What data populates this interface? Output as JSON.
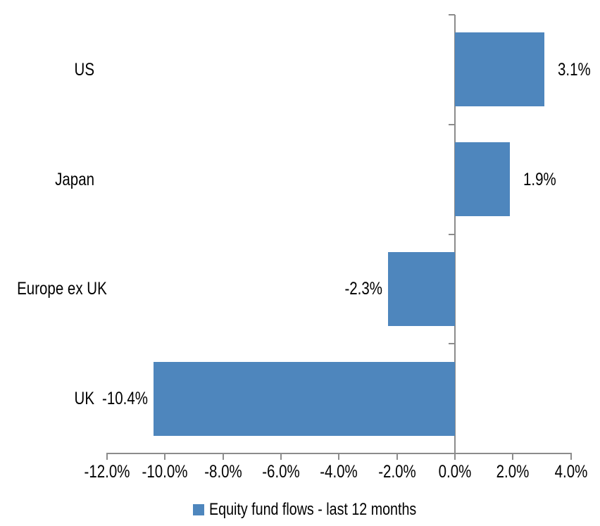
{
  "chart_data": {
    "type": "bar",
    "orientation": "horizontal",
    "title": "",
    "categories": [
      "US",
      "Japan",
      "Europe ex UK",
      "UK"
    ],
    "values": [
      3.1,
      1.9,
      -2.3,
      -10.4
    ],
    "value_labels": [
      "3.1%",
      "1.9%",
      "-2.3%",
      "-10.4%"
    ],
    "series_name": "Equity fund flows - last 12 months",
    "xlim": [
      -12,
      4
    ],
    "x_ticks": [
      -12,
      -10,
      -8,
      -6,
      -4,
      -2,
      0,
      2,
      4
    ],
    "x_tick_labels": [
      "-12.0%",
      "-10.0%",
      "-8.0%",
      "-6.0%",
      "-4.0%",
      "-2.0%",
      "0.0%",
      "2.0%",
      "4.0%"
    ],
    "grid": false,
    "legend_position": "bottom",
    "legend_marker": "square",
    "bar_color": "#4E86BD",
    "axis_color": "#8C8C8C",
    "text_color": "#000000"
  }
}
